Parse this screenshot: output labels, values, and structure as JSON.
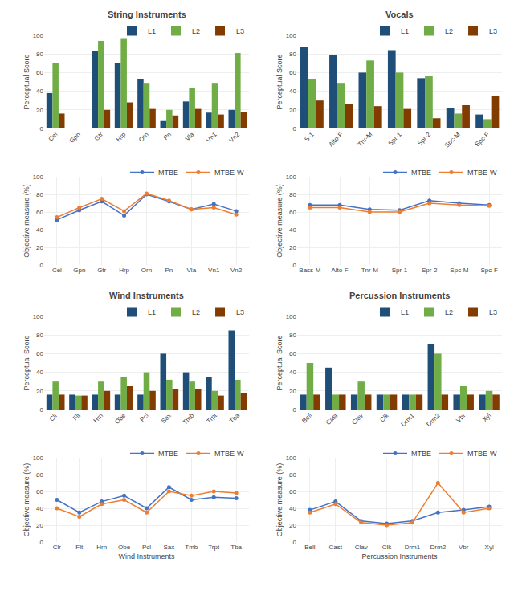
{
  "chart_data": [
    {
      "type": "bar",
      "title": "String Instruments",
      "categories": [
        "Cel",
        "Gpn",
        "Gtr",
        "Hrp",
        "Orn",
        "Pn",
        "Vla",
        "Vn1",
        "Vn2"
      ],
      "series": [
        {
          "name": "L1",
          "color": "#1f4e79",
          "values": [
            38,
            0,
            83,
            70,
            53,
            8,
            29,
            17,
            20
          ]
        },
        {
          "name": "L2",
          "color": "#70ad47",
          "values": [
            70,
            0,
            94,
            97,
            49,
            20,
            44,
            49,
            81
          ]
        },
        {
          "name": "L3",
          "color": "#833c00",
          "values": [
            16,
            0,
            20,
            28,
            21,
            14,
            21,
            15,
            18
          ]
        }
      ],
      "ylabel": "Perceptual Score",
      "ylim": [
        0,
        100
      ],
      "yticks": [
        0,
        20,
        40,
        60,
        80,
        100
      ],
      "grid": "y",
      "legend": "upper right"
    },
    {
      "type": "bar",
      "title": "Vocals",
      "categories": [
        "S-1",
        "Alto-F",
        "Tnr-M",
        "Spr-1",
        "Spr-2",
        "Spc-M",
        "Spc-F"
      ],
      "series": [
        {
          "name": "L1",
          "color": "#1f4e79",
          "values": [
            88,
            79,
            60,
            84,
            54,
            22,
            15
          ]
        },
        {
          "name": "L2",
          "color": "#70ad47",
          "values": [
            53,
            49,
            73,
            60,
            56,
            16,
            10
          ]
        },
        {
          "name": "L3",
          "color": "#833c00",
          "values": [
            30,
            26,
            24,
            21,
            11,
            25,
            35
          ]
        }
      ],
      "ylabel": "Perceptual Score",
      "ylim": [
        0,
        100
      ],
      "yticks": [
        0,
        20,
        40,
        60,
        80,
        100
      ],
      "grid": "y",
      "legend": "upper right"
    },
    {
      "type": "line",
      "categories": [
        "Cel",
        "Gpn",
        "Gtr",
        "Hrp",
        "Orn",
        "Pn",
        "Vla",
        "Vn1",
        "Vn2"
      ],
      "series": [
        {
          "name": "MTBE",
          "color": "#4472c4",
          "marker": "circle",
          "values": [
            51,
            62,
            72,
            56,
            80,
            72,
            63,
            69,
            61
          ]
        },
        {
          "name": "MTBE-W",
          "color": "#ed7d31",
          "marker": "circle",
          "values": [
            54,
            65,
            75,
            61,
            81,
            73,
            63,
            65,
            57
          ]
        }
      ],
      "ylabel": "Objective measure (%)",
      "ylim": [
        0,
        100
      ],
      "yticks": [
        0,
        20,
        40,
        60,
        80,
        100
      ],
      "grid": true,
      "legend": "upper right"
    },
    {
      "type": "line",
      "categories": [
        "Bass-M",
        "Alto-F",
        "Tnr-M",
        "Spr-1",
        "Spr-2",
        "Spc-M",
        "Spc-F"
      ],
      "series": [
        {
          "name": "MTBE",
          "color": "#4472c4",
          "marker": "circle",
          "values": [
            68,
            68,
            63,
            62,
            73,
            70,
            68
          ]
        },
        {
          "name": "MTBE-W",
          "color": "#ed7d31",
          "marker": "circle",
          "values": [
            65,
            65,
            60,
            60,
            70,
            68,
            67
          ]
        }
      ],
      "ylabel": "Objective measure (%)",
      "ylim": [
        0,
        100
      ],
      "yticks": [
        0,
        20,
        40,
        60,
        80,
        100
      ],
      "grid": true,
      "legend": "upper right"
    },
    {
      "type": "bar",
      "title": "Wind Instruments",
      "categories": [
        "Clr",
        "Flt",
        "Hrn",
        "Obe",
        "Pcl",
        "Sax",
        "Tmb",
        "Trpt",
        "Tba"
      ],
      "series": [
        {
          "name": "L1",
          "color": "#1f4e79",
          "values": [
            16,
            16,
            16,
            16,
            16,
            60,
            40,
            35,
            85
          ]
        },
        {
          "name": "L2",
          "color": "#70ad47",
          "values": [
            30,
            15,
            30,
            35,
            40,
            32,
            30,
            20,
            32
          ]
        },
        {
          "name": "L3",
          "color": "#833c00",
          "values": [
            16,
            15,
            20,
            25,
            20,
            22,
            22,
            15,
            18
          ]
        }
      ],
      "ylabel": "Perceptual Score",
      "ylim": [
        0,
        100
      ],
      "yticks": [
        0,
        20,
        40,
        60,
        80,
        100
      ],
      "grid": "y",
      "legend": "upper right"
    },
    {
      "type": "bar",
      "title": "Percussion Instruments",
      "categories": [
        "Bell",
        "Cast",
        "Clav",
        "Clk",
        "Drm1",
        "Drm2",
        "Vbr",
        "Xyl"
      ],
      "series": [
        {
          "name": "L1",
          "color": "#1f4e79",
          "values": [
            16,
            45,
            16,
            16,
            16,
            70,
            16,
            16
          ]
        },
        {
          "name": "L2",
          "color": "#70ad47",
          "values": [
            50,
            16,
            30,
            16,
            16,
            60,
            25,
            20
          ]
        },
        {
          "name": "L3",
          "color": "#833c00",
          "values": [
            16,
            16,
            16,
            16,
            16,
            16,
            16,
            16
          ]
        }
      ],
      "ylabel": "Perceptual Score",
      "ylim": [
        0,
        100
      ],
      "yticks": [
        0,
        20,
        40,
        60,
        80,
        100
      ],
      "grid": "y",
      "legend": "upper right"
    },
    {
      "type": "line",
      "xlabel": "Wind Instruments",
      "categories": [
        "Clr",
        "Flt",
        "Hrn",
        "Obe",
        "Pcl",
        "Sax",
        "Tmb",
        "Trpt",
        "Tba"
      ],
      "series": [
        {
          "name": "MTBE",
          "color": "#4472c4",
          "marker": "circle",
          "values": [
            50,
            35,
            48,
            55,
            40,
            65,
            50,
            53,
            52
          ]
        },
        {
          "name": "MTBE-W",
          "color": "#ed7d31",
          "marker": "circle",
          "values": [
            40,
            30,
            45,
            50,
            35,
            60,
            55,
            60,
            58
          ]
        }
      ],
      "ylabel": "Objective measure (%)",
      "ylim": [
        0,
        100
      ],
      "yticks": [
        0,
        20,
        40,
        60,
        80,
        100
      ],
      "grid": true,
      "legend": "upper right"
    },
    {
      "type": "line",
      "xlabel": "Percussion Instruments",
      "categories": [
        "Bell",
        "Cast",
        "Clav",
        "Clk",
        "Drm1",
        "Drm2",
        "Vbr",
        "Xyl"
      ],
      "series": [
        {
          "name": "MTBE",
          "color": "#4472c4",
          "marker": "circle",
          "values": [
            38,
            48,
            25,
            22,
            25,
            35,
            38,
            42
          ]
        },
        {
          "name": "MTBE-W",
          "color": "#ed7d31",
          "marker": "circle",
          "values": [
            35,
            45,
            23,
            20,
            23,
            70,
            35,
            40
          ]
        }
      ],
      "ylabel": "Objective measure (%)",
      "ylim": [
        0,
        100
      ],
      "yticks": [
        0,
        20,
        40,
        60,
        80,
        100
      ],
      "grid": true,
      "legend": "upper right"
    }
  ]
}
